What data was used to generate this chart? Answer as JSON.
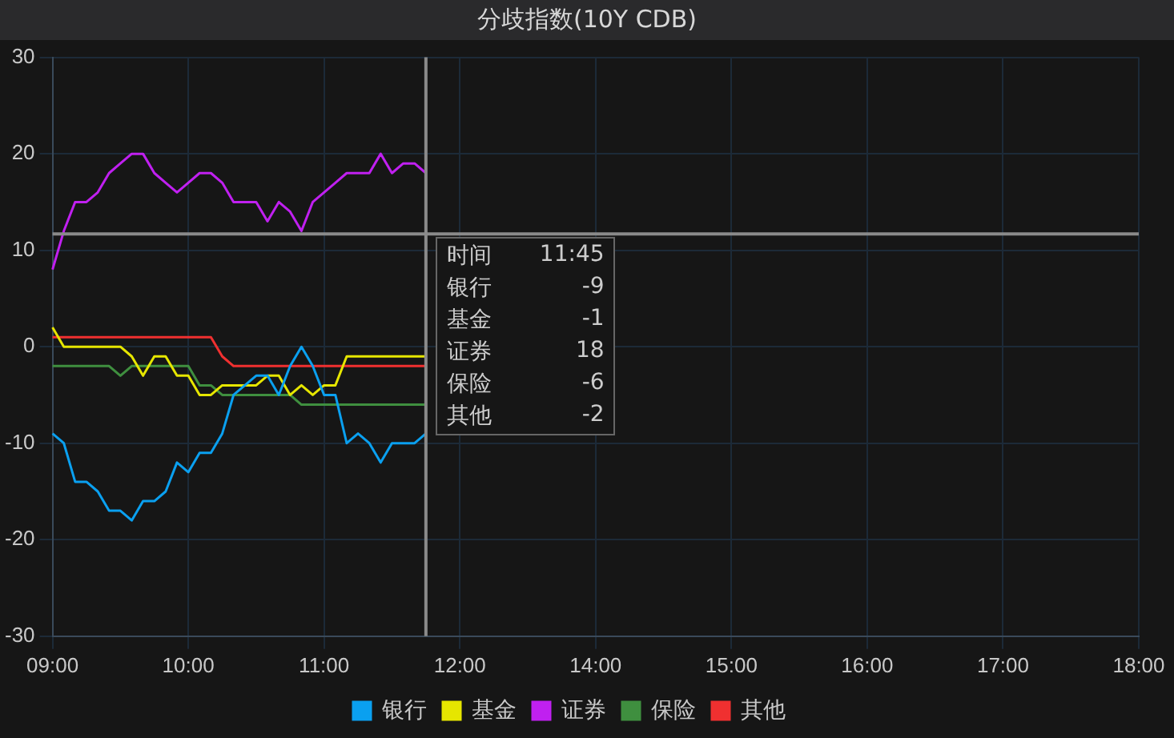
{
  "chart_data": {
    "type": "line",
    "title": "分歧指数(10Y CDB)",
    "categories": [
      "09:00",
      null,
      null,
      null,
      null,
      null,
      null,
      null,
      null,
      null,
      null,
      null,
      "10:00",
      null,
      null,
      null,
      null,
      null,
      null,
      null,
      null,
      null,
      null,
      null,
      "11:00",
      null,
      null,
      null,
      null,
      null,
      null,
      null,
      null,
      null,
      null,
      null,
      "12:00",
      null,
      null,
      null,
      null,
      null,
      null,
      null,
      null,
      null,
      null,
      null,
      "14:00",
      null,
      null,
      null,
      null,
      null,
      null,
      null,
      null,
      null,
      null,
      null,
      "15:00",
      null,
      null,
      null,
      null,
      null,
      null,
      null,
      null,
      null,
      null,
      null,
      "16:00",
      null,
      null,
      null,
      null,
      null,
      null,
      null,
      null,
      null,
      null,
      null,
      "17:00",
      null,
      null,
      null,
      null,
      null,
      null,
      null,
      null,
      null,
      null,
      null,
      "18:00"
    ],
    "series": [
      {
        "name": "银行",
        "color": "#0aa0f0",
        "values": [
          -9,
          -10,
          -14,
          -14,
          -15,
          -17,
          -17,
          -18,
          -16,
          -16,
          -15,
          -12,
          -13,
          -11,
          -11,
          -9,
          -5,
          -4,
          -3,
          -3,
          -5,
          -2,
          0,
          -2,
          -5,
          -5,
          -10,
          -9,
          -10,
          -12,
          -10,
          -10,
          -10,
          -9,
          null,
          null,
          null,
          null,
          null,
          null,
          null,
          null,
          null,
          null,
          null,
          null,
          null,
          null,
          null,
          null,
          null,
          null,
          null,
          null,
          null,
          null,
          null,
          null,
          null,
          null,
          null,
          null,
          null,
          null,
          null,
          null,
          null,
          null,
          null,
          null,
          null,
          null,
          null,
          null,
          null,
          null,
          null,
          null,
          null,
          null,
          null,
          null,
          null,
          null,
          null,
          null,
          null,
          null,
          null,
          null,
          null,
          null,
          null,
          null,
          null,
          null,
          null
        ]
      },
      {
        "name": "基金",
        "color": "#e6e600",
        "values": [
          2,
          0,
          0,
          0,
          0,
          0,
          0,
          -1,
          -3,
          -1,
          -1,
          -3,
          -3,
          -5,
          -5,
          -4,
          -4,
          -4,
          -4,
          -3,
          -3,
          -5,
          -4,
          -5,
          -4,
          -4,
          -1,
          -1,
          -1,
          -1,
          -1,
          -1,
          -1,
          -1,
          null,
          null,
          null,
          null,
          null,
          null,
          null,
          null,
          null,
          null,
          null,
          null,
          null,
          null,
          null,
          null,
          null,
          null,
          null,
          null,
          null,
          null,
          null,
          null,
          null,
          null,
          null,
          null,
          null,
          null,
          null,
          null,
          null,
          null,
          null,
          null,
          null,
          null,
          null,
          null,
          null,
          null,
          null,
          null,
          null,
          null,
          null,
          null,
          null,
          null,
          null,
          null,
          null,
          null,
          null,
          null,
          null,
          null,
          null,
          null,
          null,
          null,
          null
        ]
      },
      {
        "name": "证券",
        "color": "#c020f0",
        "values": [
          8,
          12,
          15,
          15,
          16,
          18,
          19,
          20,
          20,
          18,
          17,
          16,
          17,
          18,
          18,
          17,
          15,
          15,
          15,
          13,
          15,
          14,
          12,
          15,
          16,
          17,
          18,
          18,
          18,
          20,
          18,
          19,
          19,
          18,
          null,
          null,
          null,
          null,
          null,
          null,
          null,
          null,
          null,
          null,
          null,
          null,
          null,
          null,
          null,
          null,
          null,
          null,
          null,
          null,
          null,
          null,
          null,
          null,
          null,
          null,
          null,
          null,
          null,
          null,
          null,
          null,
          null,
          null,
          null,
          null,
          null,
          null,
          null,
          null,
          null,
          null,
          null,
          null,
          null,
          null,
          null,
          null,
          null,
          null,
          null,
          null,
          null,
          null,
          null,
          null,
          null,
          null,
          null,
          null,
          null,
          null,
          null
        ]
      },
      {
        "name": "保险",
        "color": "#3f8f3f",
        "values": [
          -2,
          -2,
          -2,
          -2,
          -2,
          -2,
          -3,
          -2,
          -2,
          -2,
          -2,
          -2,
          -2,
          -4,
          -4,
          -5,
          -5,
          -5,
          -5,
          -5,
          -5,
          -5,
          -6,
          -6,
          -6,
          -6,
          -6,
          -6,
          -6,
          -6,
          -6,
          -6,
          -6,
          -6,
          null,
          null,
          null,
          null,
          null,
          null,
          null,
          null,
          null,
          null,
          null,
          null,
          null,
          null,
          null,
          null,
          null,
          null,
          null,
          null,
          null,
          null,
          null,
          null,
          null,
          null,
          null,
          null,
          null,
          null,
          null,
          null,
          null,
          null,
          null,
          null,
          null,
          null,
          null,
          null,
          null,
          null,
          null,
          null,
          null,
          null,
          null,
          null,
          null,
          null,
          null,
          null,
          null,
          null,
          null,
          null,
          null,
          null,
          null,
          null,
          null,
          null,
          null
        ]
      },
      {
        "name": "其他",
        "color": "#f03030",
        "values": [
          1,
          1,
          1,
          1,
          1,
          1,
          1,
          1,
          1,
          1,
          1,
          1,
          1,
          1,
          1,
          -1,
          -2,
          -2,
          -2,
          -2,
          -2,
          -2,
          -2,
          -2,
          -2,
          -2,
          -2,
          -2,
          -2,
          -2,
          -2,
          -2,
          -2,
          -2,
          null,
          null,
          null,
          null,
          null,
          null,
          null,
          null,
          null,
          null,
          null,
          null,
          null,
          null,
          null,
          null,
          null,
          null,
          null,
          null,
          null,
          null,
          null,
          null,
          null,
          null,
          null,
          null,
          null,
          null,
          null,
          null,
          null,
          null,
          null,
          null,
          null,
          null,
          null,
          null,
          null,
          null,
          null,
          null,
          null,
          null,
          null,
          null,
          null,
          null,
          null,
          null,
          null,
          null,
          null,
          null,
          null,
          null,
          null,
          null,
          null,
          null,
          null
        ]
      }
    ],
    "ylim": [
      -30,
      30
    ],
    "yticks": [
      -30,
      -20,
      -10,
      0,
      10,
      20,
      30
    ],
    "grid": true,
    "legend": "bottom",
    "marker": "none",
    "line_style": "solid",
    "ref_lines": [
      {
        "axis": "x",
        "value": "11:45",
        "label": "时间",
        "color": "#8a8a8a"
      },
      {
        "axis": "y",
        "value": 11.7,
        "color": "#8a8a8a"
      }
    ],
    "annotations": [
      "银行",
      "-9",
      "基金",
      "-1",
      "证券",
      "18",
      "保险",
      "-6",
      "其他",
      "-2"
    ]
  }
}
